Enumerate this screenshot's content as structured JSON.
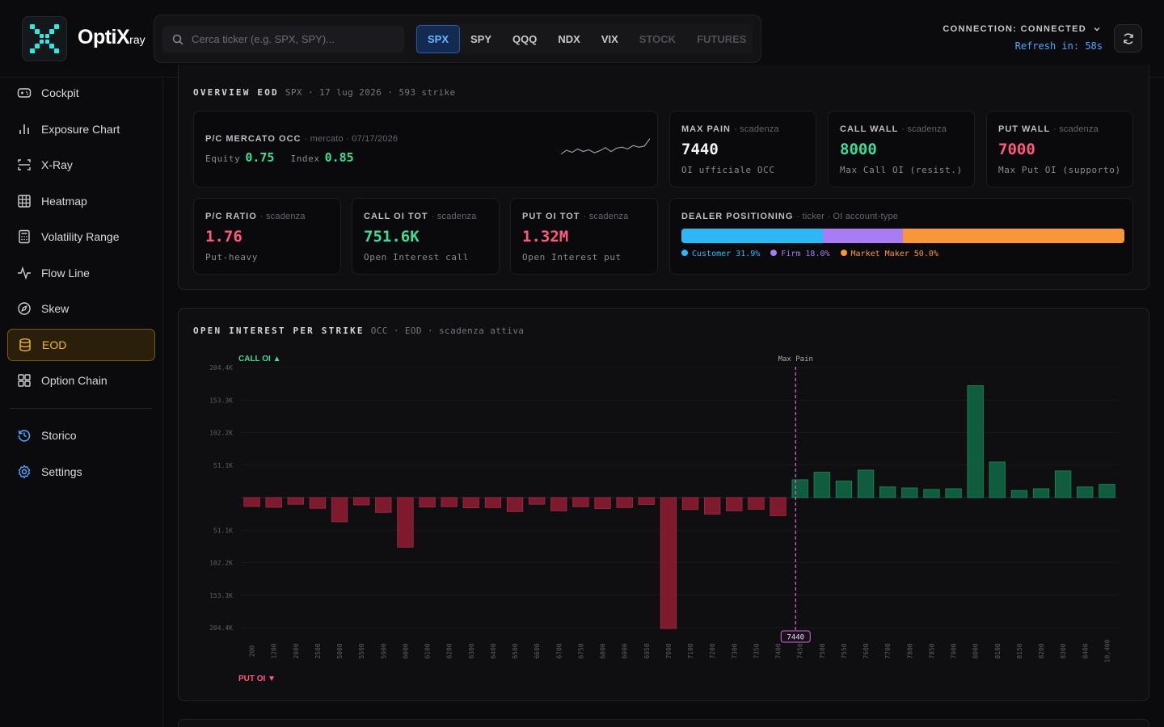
{
  "app": {
    "name": "OptiX",
    "name_suffix": "ray"
  },
  "search": {
    "placeholder": "Cerca ticker (e.g. SPX, SPY)..."
  },
  "tickers": [
    {
      "label": "SPX",
      "state": "active"
    },
    {
      "label": "SPY",
      "state": "normal"
    },
    {
      "label": "QQQ",
      "state": "normal"
    },
    {
      "label": "NDX",
      "state": "normal"
    },
    {
      "label": "VIX",
      "state": "normal"
    },
    {
      "label": "STOCK",
      "state": "dim"
    },
    {
      "label": "FUTURES",
      "state": "dim"
    }
  ],
  "connection": {
    "label": "CONNECTION: CONNECTED",
    "refresh": "Refresh in: 58s"
  },
  "sidebar": {
    "items": [
      {
        "label": "Cockpit",
        "icon": "gamepad-icon"
      },
      {
        "label": "Exposure Chart",
        "icon": "bar-chart-icon"
      },
      {
        "label": "X-Ray",
        "icon": "scan-icon"
      },
      {
        "label": "Heatmap",
        "icon": "grid-icon"
      },
      {
        "label": "Volatility Range",
        "icon": "calculator-icon"
      },
      {
        "label": "Flow Line",
        "icon": "pulse-icon"
      },
      {
        "label": "Skew",
        "icon": "compass-icon"
      },
      {
        "label": "EOD",
        "icon": "database-icon"
      },
      {
        "label": "Option Chain",
        "icon": "layout-icon"
      }
    ],
    "bottom": [
      {
        "label": "Storico",
        "icon": "history-icon"
      },
      {
        "label": "Settings",
        "icon": "gear-icon"
      }
    ]
  },
  "overview": {
    "title": "OVERVIEW EOD",
    "subtitle": "SPX · 17 lug 2026 · 593 strike",
    "pc_market": {
      "label": "P/C MERCATO OCC",
      "sub": "· mercato · 07/17/2026",
      "equity_label": "Equity",
      "equity_value": "0.75",
      "index_label": "Index",
      "index_value": "0.85",
      "spark": [
        0.35,
        0.5,
        0.42,
        0.55,
        0.45,
        0.52,
        0.4,
        0.48,
        0.6,
        0.45,
        0.58,
        0.62,
        0.55,
        0.68,
        0.62,
        0.66,
        0.95
      ]
    },
    "max_pain": {
      "label": "MAX PAIN",
      "sub": "· scadenza",
      "value": "7440",
      "caption": "OI ufficiale OCC"
    },
    "call_wall": {
      "label": "CALL WALL",
      "sub": "· scadenza",
      "value": "8000",
      "caption": "Max Call OI (resist.)"
    },
    "put_wall": {
      "label": "PUT WALL",
      "sub": "· scadenza",
      "value": "7000",
      "caption": "Max Put OI (supporto)"
    },
    "pc_ratio": {
      "label": "P/C RATIO",
      "sub": "· scadenza",
      "value": "1.76",
      "caption": "Put-heavy"
    },
    "call_oi": {
      "label": "CALL OI TOT",
      "sub": "· scadenza",
      "value": "751.6K",
      "caption": "Open Interest call"
    },
    "put_oi": {
      "label": "PUT OI TOT",
      "sub": "· scadenza",
      "value": "1.32M",
      "caption": "Open Interest put"
    },
    "dealer": {
      "label": "DEALER POSITIONING",
      "sub": "· ticker · OI account-type",
      "segments": [
        {
          "name": "Customer",
          "pct": 31.9,
          "text": "Customer 31.9%",
          "color": "#2db8f5"
        },
        {
          "name": "Firm",
          "pct": 18.0,
          "text": "Firm 18.0%",
          "color": "#a77cf5"
        },
        {
          "name": "Market Maker",
          "pct": 50.0,
          "text": "Market Maker 50.0%",
          "color": "#f7973a"
        }
      ]
    }
  },
  "oi_chart": {
    "title": "OPEN INTEREST PER STRIKE",
    "subtitle": "OCC · EOD · scadenza attiva",
    "call_label": "CALL OI ▲",
    "put_label": "PUT OI ▼",
    "max_pain_label": "Max Pain",
    "max_pain_value": "7440"
  },
  "chart_data": {
    "type": "bar",
    "title": "OPEN INTEREST PER STRIKE",
    "categories": [
      "200",
      "1200",
      "2000",
      "2500",
      "5000",
      "5500",
      "5900",
      "6000",
      "6100",
      "6200",
      "6300",
      "6400",
      "6500",
      "6600",
      "6700",
      "6750",
      "6800",
      "6900",
      "6950",
      "7000",
      "7100",
      "7200",
      "7300",
      "7350",
      "7400",
      "7450",
      "7500",
      "7550",
      "7600",
      "7700",
      "7800",
      "7850",
      "7900",
      "8000",
      "8100",
      "8150",
      "8200",
      "8300",
      "8400",
      "10,400"
    ],
    "series": [
      {
        "name": "CALL OI",
        "values": [
          0,
          0,
          0,
          0,
          0,
          0,
          0,
          0,
          0,
          0,
          0,
          0,
          0,
          0,
          0,
          0,
          0,
          0,
          0,
          0,
          0,
          0,
          0,
          0,
          0,
          7000,
          10000,
          6500,
          10800,
          4200,
          3800,
          3200,
          3500,
          44000,
          14000,
          2800,
          3500,
          10500,
          4200,
          5200
        ]
      },
      {
        "name": "PUT OI",
        "values": [
          3500,
          3800,
          2600,
          4200,
          9500,
          2900,
          5800,
          19500,
          3700,
          3600,
          4000,
          3900,
          5500,
          2600,
          5200,
          3600,
          4300,
          3900,
          2700,
          53000,
          4700,
          6500,
          5200,
          4600,
          7100,
          0,
          0,
          0,
          0,
          0,
          0,
          0,
          0,
          0,
          0,
          0,
          0,
          0,
          0,
          0
        ]
      }
    ],
    "y_ticks": [
      "204.4K",
      "153.3K",
      "102.2K",
      "51.1K",
      "51.1K",
      "102.2K",
      "153.3K",
      "204.4K"
    ],
    "ylim": [
      -51100,
      51100
    ],
    "max_pain_strike": "7440"
  }
}
